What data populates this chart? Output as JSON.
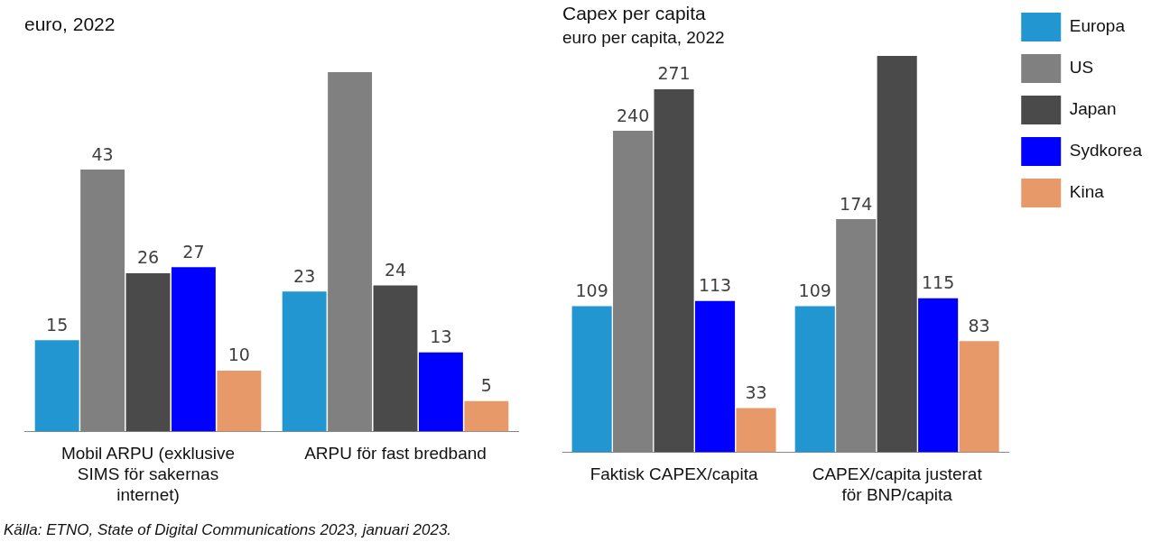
{
  "chart_data": [
    {
      "type": "bar",
      "title": "euro, 2022",
      "categories": [
        "Mobil ARPU (exklusive SIMS för sakernas internet)",
        "ARPU för fast bredband"
      ],
      "series": [
        {
          "color": "#2196d0",
          "values": [
            15,
            23
          ],
          "value_labels": [
            "15",
            "23"
          ]
        },
        {
          "color": "#808080",
          "values": [
            43,
            59
          ],
          "value_labels": [
            "43",
            null
          ]
        },
        {
          "color": "#4a4a4a",
          "values": [
            26,
            24
          ],
          "value_labels": [
            "26",
            "24"
          ]
        },
        {
          "color": "#0000ff",
          "values": [
            27,
            13
          ],
          "value_labels": [
            "27",
            "13"
          ]
        },
        {
          "color": "#e8996a",
          "values": [
            10,
            5
          ],
          "value_labels": [
            "10",
            "5"
          ]
        }
      ],
      "legend": false,
      "grid": false,
      "tick_labels": "x",
      "annotations": [
        "Källa: ETNO, State of Digital Communications 2023, januari 2023."
      ]
    },
    {
      "type": "bar",
      "title": "Capex per capita",
      "subtitle": "euro per capita, 2022",
      "categories": [
        "Faktisk CAPEX/capita",
        "CAPEX/capita justerat för BNP/capita"
      ],
      "series": [
        {
          "name": "Europa",
          "color": "#2196d0",
          "values": [
            109,
            109
          ],
          "value_labels": [
            "109",
            "109"
          ]
        },
        {
          "name": "US",
          "color": "#808080",
          "values": [
            240,
            174
          ],
          "value_labels": [
            "240",
            "174"
          ]
        },
        {
          "name": "Japan",
          "color": "#4a4a4a",
          "values": [
            271,
            296
          ],
          "value_labels": [
            "271",
            null
          ]
        },
        {
          "name": "Sydkorea",
          "color": "#0000ff",
          "values": [
            113,
            115
          ],
          "value_labels": [
            "113",
            "115"
          ]
        },
        {
          "name": "Kina",
          "color": "#e8996a",
          "values": [
            33,
            83
          ],
          "value_labels": [
            "33",
            "83"
          ]
        }
      ],
      "legend": "right",
      "grid": false,
      "tick_labels": "x"
    }
  ]
}
